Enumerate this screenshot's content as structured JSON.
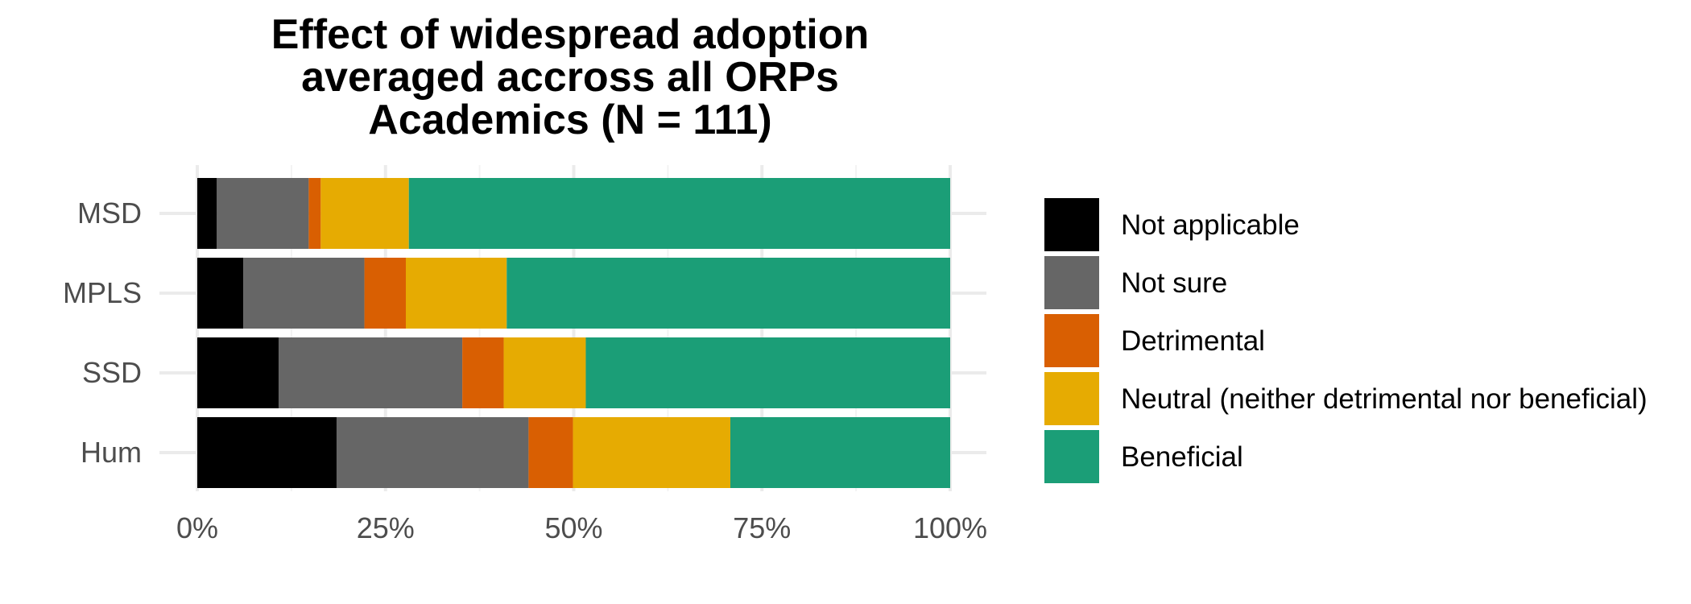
{
  "chart_data": {
    "type": "bar",
    "orientation": "horizontal",
    "stacked": "percent",
    "title": [
      "Effect of widespread adoption",
      "averaged accross all ORPs",
      "Academics (N = 111)"
    ],
    "categories": [
      "MSD",
      "MPLS",
      "SSD",
      "Hum"
    ],
    "xlim": [
      0,
      100
    ],
    "x_ticks": [
      "0%",
      "25%",
      "50%",
      "75%",
      "100%"
    ],
    "grid": true,
    "legend_position": "right",
    "series": [
      {
        "name": "Not applicable",
        "color": "#000000",
        "values": [
          2.6,
          6.1,
          10.8,
          18.5
        ]
      },
      {
        "name": "Not sure",
        "color": "#666666",
        "values": [
          12.2,
          16.1,
          24.4,
          25.5
        ]
      },
      {
        "name": "Detrimental",
        "color": "#d95f02",
        "values": [
          1.6,
          5.5,
          5.5,
          5.9
        ]
      },
      {
        "name": "Neutral (neither detrimental nor beneficial)",
        "color": "#e6ab02",
        "values": [
          11.7,
          13.4,
          10.9,
          20.9
        ]
      },
      {
        "name": "Beneficial",
        "color": "#1b9e77",
        "values": [
          71.9,
          58.9,
          48.4,
          29.2
        ]
      }
    ]
  }
}
